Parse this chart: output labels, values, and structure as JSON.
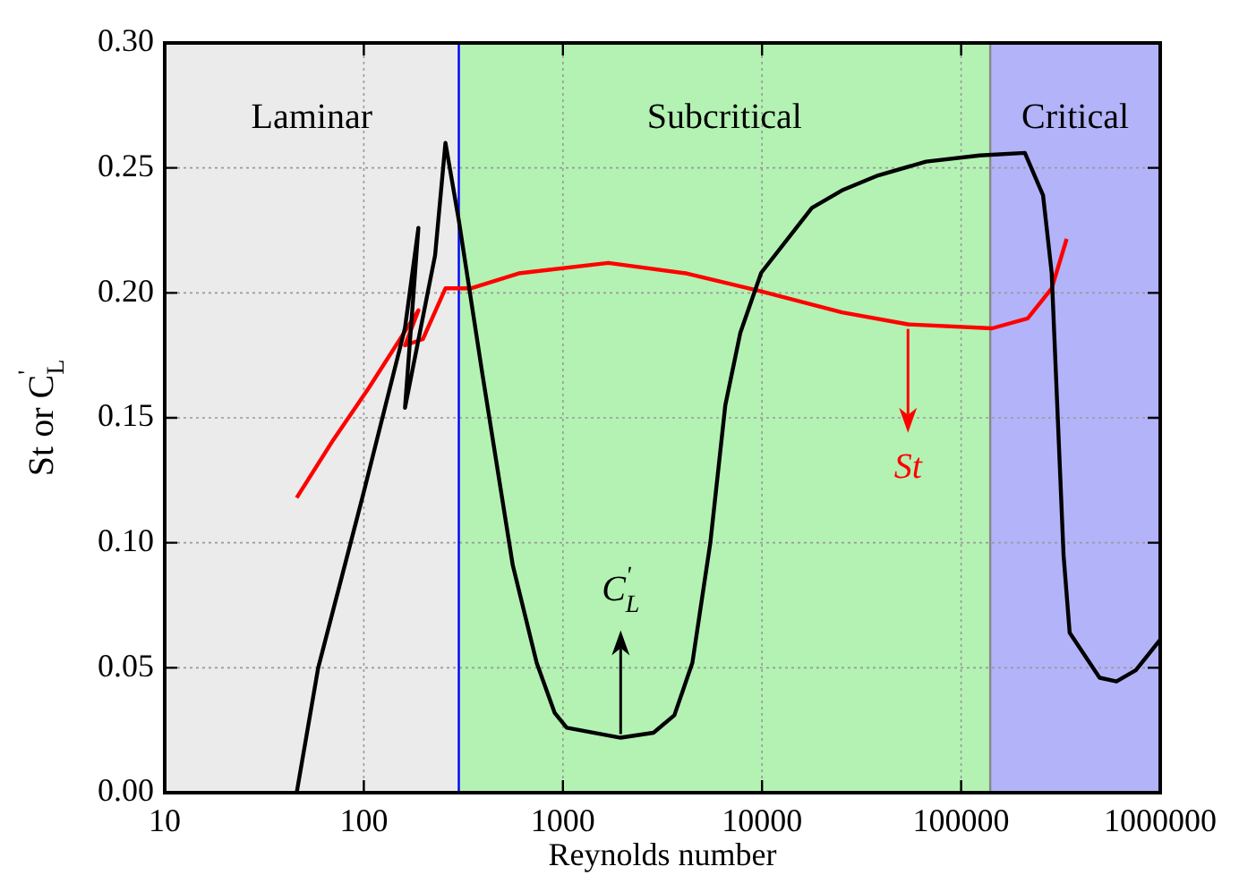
{
  "chart_data": {
    "type": "line",
    "xlabel": "Reynolds number",
    "ylabel": "St or C$_{L}$$^{'}$",
    "log": "x",
    "grid": true,
    "legend": false,
    "marker": "none",
    "line_style": "solid",
    "xlim": [
      10,
      1000000
    ],
    "xticks": [
      10,
      100,
      1000,
      10000,
      100000,
      1000000
    ],
    "ylim": [
      0,
      0.3
    ],
    "yticks": [
      {
        "value": 0,
        "label": "0.00"
      },
      {
        "value": 0.05,
        "label": "0.05"
      },
      {
        "value": 0.1,
        "label": "0.10"
      },
      {
        "value": 0.15,
        "label": "0.15"
      },
      {
        "value": 0.2,
        "label": "0.20"
      },
      {
        "value": 0.25,
        "label": "0.25"
      },
      {
        "value": 0.3,
        "label": "0.30"
      }
    ],
    "bands": [
      {
        "axis": "x",
        "from": 10,
        "to": 300,
        "label": "Laminar",
        "color": "#ebebeb"
      },
      {
        "axis": "x",
        "from": 300,
        "to": 140000,
        "label": "Subcritical",
        "color": "#b3f2b3"
      },
      {
        "axis": "x",
        "from": 140000,
        "to": 1000000,
        "label": "Critical",
        "color": "#b3b3fa"
      }
    ],
    "ref_lines": [
      {
        "axis": "x",
        "value": 300,
        "color": "#0000ff"
      },
      {
        "axis": "x",
        "value": 140000,
        "color": "#888888"
      }
    ],
    "series": [
      {
        "color": "#000000",
        "x": [
          46,
          59,
          99,
          161,
          188,
          161,
          228,
          257,
          300,
          395,
          560,
          738,
          908,
          1045,
          1950,
          2850,
          3630,
          4470,
          5500,
          6540,
          7780,
          9900,
          17800,
          25200,
          38300,
          66700,
          124000,
          209000,
          258000,
          285000,
          327000,
          351000,
          496000,
          603000,
          754000,
          994000
        ],
        "values": [
          0,
          0.05,
          0.119,
          0.186,
          0.226,
          0.154,
          0.215,
          0.26,
          0.229,
          0.167,
          0.091,
          0.052,
          0.032,
          0.026,
          0.022,
          0.024,
          0.031,
          0.052,
          0.1,
          0.155,
          0.184,
          0.208,
          0.234,
          0.241,
          0.247,
          0.2525,
          0.255,
          0.256,
          0.239,
          0.208,
          0.095,
          0.064,
          0.046,
          0.0445,
          0.049,
          0.061
        ]
      },
      {
        "color": "#ff0000",
        "x": [
          46,
          70,
          106,
          188,
          161,
          198,
          257,
          344,
          600,
          1690,
          4170,
          9900,
          25200,
          54100,
          143000,
          216000,
          285000,
          339000
        ],
        "values": [
          0.118,
          0.141,
          0.162,
          0.193,
          0.179,
          0.1815,
          0.2018,
          0.2018,
          0.2078,
          0.212,
          0.2078,
          0.2006,
          0.1922,
          0.1874,
          0.1858,
          0.1898,
          0.2018,
          0.2216
        ]
      }
    ],
    "annotations": [
      {
        "text": "C$_{L}$$^{'}$",
        "x": 1950,
        "y": 0.022
      },
      {
        "text": "St",
        "x": 54100,
        "y": 0.187
      }
    ]
  }
}
